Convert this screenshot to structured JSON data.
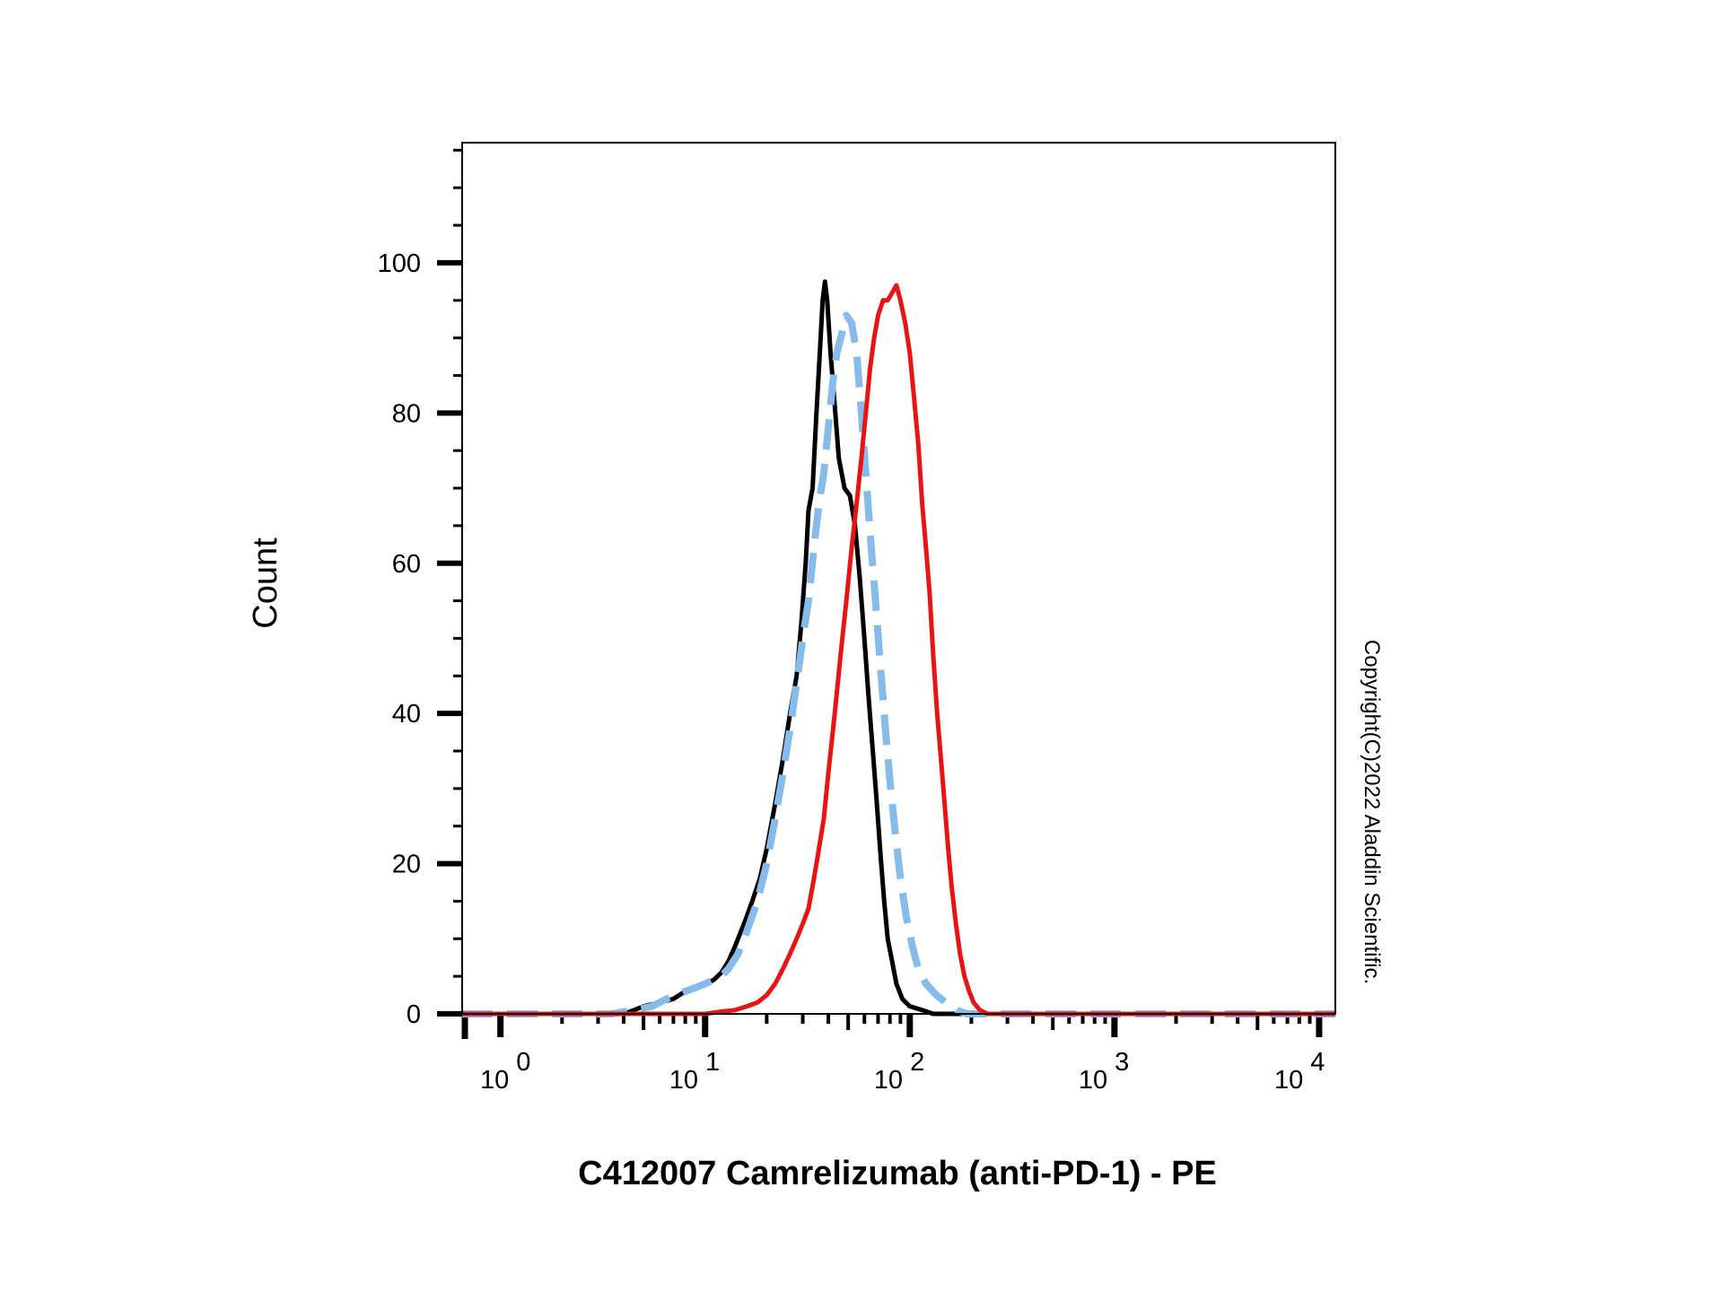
{
  "chart_data": {
    "type": "line",
    "title": "",
    "xlabel": "C412007 Camrelizumab (anti-PD-1) - PE",
    "ylabel": "Count",
    "x_scale": "log",
    "xlim": [
      0.65,
      12000
    ],
    "ylim": [
      0,
      116
    ],
    "y_ticks": [
      0,
      20,
      40,
      60,
      80,
      100
    ],
    "x_ticks": [
      {
        "base": "10",
        "exp": "0",
        "value": 1
      },
      {
        "base": "10",
        "exp": "1",
        "value": 10
      },
      {
        "base": "10",
        "exp": "2",
        "value": 100
      },
      {
        "base": "10",
        "exp": "3",
        "value": 1000
      },
      {
        "base": "10",
        "exp": "4",
        "value": 10000
      }
    ],
    "grid": false,
    "legend": "none",
    "series": [
      {
        "name": "black-histogram",
        "color": "#000000",
        "style": "solid",
        "points": [
          [
            0.65,
            0
          ],
          [
            4.0,
            0
          ],
          [
            4.5,
            0.5
          ],
          [
            5.0,
            1
          ],
          [
            6.0,
            1.5
          ],
          [
            7.0,
            2
          ],
          [
            8.0,
            3
          ],
          [
            9.0,
            3.5
          ],
          [
            10,
            4
          ],
          [
            11,
            4.5
          ],
          [
            12,
            5.5
          ],
          [
            13,
            7
          ],
          [
            14,
            9
          ],
          [
            15.5,
            12
          ],
          [
            17,
            15
          ],
          [
            18.5,
            18
          ],
          [
            20,
            22
          ],
          [
            22,
            28
          ],
          [
            24,
            34
          ],
          [
            26,
            40
          ],
          [
            28,
            45
          ],
          [
            29.5,
            52
          ],
          [
            31,
            60
          ],
          [
            32,
            67
          ],
          [
            33.5,
            70
          ],
          [
            35,
            80
          ],
          [
            36.5,
            89
          ],
          [
            37.5,
            95
          ],
          [
            38.5,
            97.5
          ],
          [
            39.5,
            95
          ],
          [
            41,
            88
          ],
          [
            43,
            81
          ],
          [
            45,
            74
          ],
          [
            48,
            70
          ],
          [
            51,
            69
          ],
          [
            54,
            65
          ],
          [
            57,
            58
          ],
          [
            60,
            50
          ],
          [
            63,
            42
          ],
          [
            66,
            35
          ],
          [
            69,
            28
          ],
          [
            72,
            21
          ],
          [
            75,
            15
          ],
          [
            78,
            10
          ],
          [
            82,
            7
          ],
          [
            86,
            4
          ],
          [
            92,
            2
          ],
          [
            100,
            1
          ],
          [
            115,
            0.5
          ],
          [
            130,
            0
          ],
          [
            12000,
            0
          ]
        ]
      },
      {
        "name": "blue-dashed-histogram",
        "color": "#85bcec",
        "style": "dashed",
        "points": [
          [
            0.65,
            0
          ],
          [
            3.5,
            0
          ],
          [
            4.5,
            0.5
          ],
          [
            5.5,
            1
          ],
          [
            6.5,
            2
          ],
          [
            8.0,
            3
          ],
          [
            9.0,
            3.5
          ],
          [
            10,
            4
          ],
          [
            11,
            4.5
          ],
          [
            12,
            5
          ],
          [
            13,
            6
          ],
          [
            14.5,
            8
          ],
          [
            16,
            11
          ],
          [
            18,
            15
          ],
          [
            20,
            20
          ],
          [
            22,
            26
          ],
          [
            24,
            32
          ],
          [
            26,
            38
          ],
          [
            28,
            44
          ],
          [
            30,
            50
          ],
          [
            32,
            55
          ],
          [
            34,
            62
          ],
          [
            36,
            68
          ],
          [
            38,
            72
          ],
          [
            40,
            78
          ],
          [
            42,
            84
          ],
          [
            44,
            88
          ],
          [
            46,
            90
          ],
          [
            49,
            93
          ],
          [
            52,
            92
          ],
          [
            55,
            88
          ],
          [
            58,
            80
          ],
          [
            61,
            72
          ],
          [
            64,
            64
          ],
          [
            68,
            55
          ],
          [
            72,
            46
          ],
          [
            76,
            38
          ],
          [
            80,
            31
          ],
          [
            85,
            24
          ],
          [
            90,
            18
          ],
          [
            96,
            13
          ],
          [
            103,
            9
          ],
          [
            110,
            6
          ],
          [
            120,
            4
          ],
          [
            135,
            2.5
          ],
          [
            150,
            1.5
          ],
          [
            170,
            0.5
          ],
          [
            190,
            0
          ],
          [
            12000,
            0
          ]
        ]
      },
      {
        "name": "red-histogram",
        "color": "#e81414",
        "style": "solid",
        "points": [
          [
            0.65,
            0
          ],
          [
            10,
            0
          ],
          [
            12,
            0.3
          ],
          [
            14,
            0.5
          ],
          [
            16,
            1
          ],
          [
            18,
            1.5
          ],
          [
            20,
            2.5
          ],
          [
            22,
            4
          ],
          [
            24,
            6
          ],
          [
            26,
            8
          ],
          [
            28,
            10
          ],
          [
            30,
            12
          ],
          [
            32,
            14
          ],
          [
            34,
            18
          ],
          [
            36,
            22
          ],
          [
            38,
            26
          ],
          [
            40,
            32
          ],
          [
            43,
            40
          ],
          [
            46,
            48
          ],
          [
            49,
            55
          ],
          [
            52,
            62
          ],
          [
            55,
            68
          ],
          [
            58,
            74
          ],
          [
            61,
            80
          ],
          [
            64,
            86
          ],
          [
            67,
            90
          ],
          [
            70,
            93
          ],
          [
            74,
            95
          ],
          [
            78,
            95
          ],
          [
            82,
            96
          ],
          [
            86,
            97
          ],
          [
            90,
            95
          ],
          [
            95,
            92
          ],
          [
            100,
            88
          ],
          [
            105,
            82
          ],
          [
            110,
            76
          ],
          [
            115,
            68
          ],
          [
            120,
            62
          ],
          [
            125,
            56
          ],
          [
            130,
            48
          ],
          [
            136,
            40
          ],
          [
            142,
            34
          ],
          [
            148,
            28
          ],
          [
            154,
            22
          ],
          [
            160,
            17
          ],
          [
            168,
            12
          ],
          [
            176,
            8
          ],
          [
            185,
            5
          ],
          [
            195,
            3
          ],
          [
            205,
            1.5
          ],
          [
            220,
            0.5
          ],
          [
            240,
            0
          ],
          [
            12000,
            0
          ]
        ]
      }
    ]
  },
  "copyright": "Copyright(C)2022 Aladdin Scientific."
}
